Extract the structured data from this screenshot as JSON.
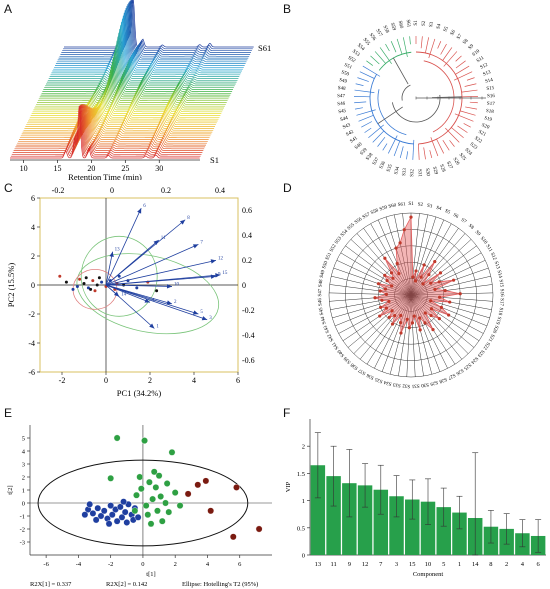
{
  "panel_labels": [
    "A",
    "B",
    "C",
    "D",
    "E",
    "F"
  ],
  "chart_data": [
    {
      "id": "A",
      "type": "line",
      "xlabel": "Retention Time (min)",
      "xticks": [
        10,
        15,
        20,
        25,
        30
      ],
      "xlim": [
        8,
        36
      ],
      "first_label": "S1",
      "last_label": "S61",
      "n_traces": 61,
      "peaks": [
        {
          "rt": 16.2,
          "h": 0.2
        },
        {
          "rt": 17.5,
          "h": 0.35
        },
        {
          "rt": 18.2,
          "h": 0.9
        },
        {
          "rt": 19.6,
          "h": 0.25
        },
        {
          "rt": 22.5,
          "h": 0.15
        },
        {
          "rt": 28.0,
          "h": 0.15
        },
        {
          "rt": 29.5,
          "h": 0.1
        }
      ],
      "colors": [
        "#d62728",
        "#f0a030",
        "#e8e030",
        "#3cb043",
        "#2aa6d8",
        "#1f3f9f"
      ]
    },
    {
      "id": "B",
      "type": "dendrogram",
      "labels": [
        "S1",
        "S2",
        "S3",
        "S4",
        "S5",
        "S6",
        "S7",
        "S8",
        "S9",
        "S10",
        "S11",
        "S12",
        "S13",
        "S14",
        "S15",
        "S16",
        "S17",
        "S18",
        "S19",
        "S20",
        "S21",
        "S22",
        "S23",
        "S24",
        "S25",
        "S26",
        "S27",
        "S28",
        "S29",
        "S30",
        "S31",
        "S32",
        "S33",
        "S34",
        "S35",
        "S36",
        "S37",
        "S38",
        "S39",
        "S40",
        "S41",
        "S42",
        "S43",
        "S44",
        "S45",
        "S46",
        "S47",
        "S48",
        "S49",
        "S50",
        "S51",
        "S52",
        "S53",
        "S54",
        "S55",
        "S56",
        "S57",
        "S58",
        "S59",
        "S60",
        "S61"
      ],
      "cluster_colors": [
        "#d9534f",
        "#3a7bd5",
        "#3cae6b"
      ]
    },
    {
      "id": "C",
      "type": "scatter",
      "xlabel": "PC1 (34.2%)",
      "ylabel": "PC2 (15.5%)",
      "xlim": [
        -3,
        6
      ],
      "ylim": [
        -6,
        6
      ],
      "xticks": [
        -2,
        0,
        2,
        4,
        6
      ],
      "yticks": [
        -6,
        -4,
        -2,
        0,
        2,
        4,
        6
      ],
      "top_ticks": [
        "-0.2",
        "0",
        "0.2",
        "0.4"
      ],
      "right_ticks": [
        "0.6",
        "0.4",
        "0.2",
        "0",
        "-0.2",
        "-0.4",
        "-0.6"
      ],
      "loadings": [
        {
          "name": "6",
          "x": 1.6,
          "y": 5.3
        },
        {
          "name": "8",
          "x": 3.6,
          "y": 4.5
        },
        {
          "name": "7",
          "x": 4.2,
          "y": 2.8
        },
        {
          "name": "11",
          "x": 2.4,
          "y": 3.1
        },
        {
          "name": "13",
          "x": 0.3,
          "y": 2.3
        },
        {
          "name": "12",
          "x": 5.0,
          "y": 1.7
        },
        {
          "name": "9",
          "x": 5.0,
          "y": 0.6
        },
        {
          "name": "15",
          "x": 5.2,
          "y": 0.7
        },
        {
          "name": "10",
          "x": 3.0,
          "y": -0.1
        },
        {
          "name": "3",
          "x": 4.6,
          "y": -2.4
        },
        {
          "name": "5",
          "x": 4.2,
          "y": -2.0
        },
        {
          "name": "2",
          "x": 3.0,
          "y": -1.3
        },
        {
          "name": "1",
          "x": 2.2,
          "y": -3.0
        },
        {
          "name": "4",
          "x": 2.0,
          "y": -1.2
        },
        {
          "name": "14",
          "x": 0.6,
          "y": -0.8
        }
      ],
      "scores": [
        [
          -2.1,
          0.6
        ],
        [
          -1.8,
          0.2
        ],
        [
          -1.5,
          -0.3
        ],
        [
          -1.2,
          0.4
        ],
        [
          -1.0,
          0.1
        ],
        [
          -0.8,
          -0.2
        ],
        [
          -0.6,
          0.3
        ],
        [
          -0.4,
          0.0
        ],
        [
          -0.2,
          0.2
        ],
        [
          0.0,
          -0.1
        ],
        [
          -0.9,
          0.5
        ],
        [
          -1.3,
          -0.1
        ],
        [
          -0.5,
          -0.4
        ],
        [
          -0.3,
          0.5
        ],
        [
          0.2,
          0.3
        ],
        [
          0.5,
          0.1
        ],
        [
          0.8,
          0.0
        ],
        [
          1.0,
          0.3
        ],
        [
          0.4,
          -0.3
        ],
        [
          -0.7,
          -0.3
        ],
        [
          1.4,
          -0.2
        ],
        [
          1.9,
          0.2
        ],
        [
          2.3,
          -0.4
        ],
        [
          0.6,
          0.6
        ]
      ],
      "colors": {
        "scores_red": "#c0392b",
        "scores_black": "#111111",
        "scores_blue": "#1f3f9f",
        "ellipse_green": "#7ac47a",
        "ellipse_red": "#e08080",
        "box": "#d8c060"
      }
    },
    {
      "id": "D",
      "type": "radar",
      "labels": [
        "S1",
        "S2",
        "S3",
        "S4",
        "S5",
        "S6",
        "S7",
        "S8",
        "S9",
        "S10",
        "S11",
        "S12",
        "S13",
        "S14",
        "S15",
        "S16",
        "S17",
        "S18",
        "S19",
        "S20",
        "S21",
        "S22",
        "S23",
        "S24",
        "S25",
        "S26",
        "S27",
        "S28",
        "S29",
        "S30",
        "S31",
        "S32",
        "S33",
        "S34",
        "S35",
        "S36",
        "S37",
        "S38",
        "S39",
        "S40",
        "S41",
        "S42",
        "S43",
        "S44",
        "S45",
        "S46",
        "S47",
        "S48",
        "S49",
        "S50",
        "S51",
        "S52",
        "S53",
        "S54",
        "S55",
        "S56",
        "S57",
        "S58",
        "S59",
        "S60",
        "S61"
      ],
      "values": [
        0.95,
        0.22,
        0.3,
        0.18,
        0.4,
        0.25,
        0.5,
        0.33,
        0.2,
        0.45,
        0.28,
        0.38,
        0.55,
        0.3,
        0.42,
        0.6,
        0.35,
        0.48,
        0.25,
        0.4,
        0.52,
        0.3,
        0.45,
        0.35,
        0.28,
        0.5,
        0.38,
        0.3,
        0.44,
        0.26,
        0.34,
        0.4,
        0.3,
        0.48,
        0.36,
        0.28,
        0.42,
        0.32,
        0.38,
        0.3,
        0.46,
        0.34,
        0.4,
        0.28,
        0.36,
        0.44,
        0.3,
        0.38,
        0.32,
        0.42,
        0.26,
        0.34,
        0.4,
        0.3,
        0.36,
        0.55,
        0.3,
        0.42,
        0.6,
        0.65,
        0.8
      ],
      "color": "#e55b5b"
    },
    {
      "id": "E",
      "type": "scatter",
      "xlabel": "t[1]",
      "ylabel": "t[2]",
      "xlim": [
        -7,
        8
      ],
      "ylim": [
        -4,
        6
      ],
      "xticks": [
        -6,
        -4,
        -2,
        0,
        2,
        4,
        6
      ],
      "yticks": [
        -3,
        -2,
        -1,
        0,
        1,
        2,
        3,
        4,
        5
      ],
      "footer": [
        "R2X[1] = 0.337",
        "R2X[2] = 0.142",
        "Ellipse: Hotelling's T2 (95%)"
      ],
      "groups": [
        {
          "name": "blue",
          "color": "#1f3fa0",
          "points": [
            [
              -3.4,
              -0.5
            ],
            [
              -3.1,
              -0.8
            ],
            [
              -2.8,
              -0.4
            ],
            [
              -2.6,
              -1.0
            ],
            [
              -2.4,
              -0.6
            ],
            [
              -2.2,
              -1.2
            ],
            [
              -2.0,
              -0.2
            ],
            [
              -1.9,
              -0.9
            ],
            [
              -1.7,
              -0.5
            ],
            [
              -1.6,
              -1.4
            ],
            [
              -1.4,
              -0.3
            ],
            [
              -1.3,
              -1.1
            ],
            [
              -1.1,
              -0.7
            ],
            [
              -1.0,
              -1.5
            ],
            [
              -0.9,
              -0.1
            ],
            [
              -0.7,
              -0.9
            ],
            [
              -0.6,
              -1.3
            ],
            [
              -0.5,
              -0.4
            ],
            [
              -2.9,
              -1.3
            ],
            [
              -3.3,
              -0.1
            ],
            [
              -2.1,
              -1.6
            ],
            [
              -1.2,
              0.1
            ],
            [
              -0.3,
              -1.1
            ],
            [
              -3.6,
              -0.9
            ]
          ]
        },
        {
          "name": "green",
          "color": "#2ea043",
          "points": [
            [
              -2.0,
              1.9
            ],
            [
              -1.6,
              5.0
            ],
            [
              0.1,
              4.8
            ],
            [
              1.8,
              3.9
            ],
            [
              -0.2,
              2.0
            ],
            [
              0.4,
              1.6
            ],
            [
              0.8,
              1.2
            ],
            [
              1.1,
              0.5
            ],
            [
              0.6,
              0.3
            ],
            [
              0.2,
              -0.2
            ],
            [
              -0.4,
              0.6
            ],
            [
              1.4,
              0.0
            ],
            [
              0.9,
              -0.6
            ],
            [
              0.3,
              -0.9
            ],
            [
              1.6,
              -0.7
            ],
            [
              1.2,
              -1.4
            ],
            [
              0.5,
              -1.6
            ],
            [
              2.0,
              0.8
            ],
            [
              -0.1,
              1.1
            ],
            [
              0.7,
              2.4
            ],
            [
              1.0,
              2.1
            ],
            [
              -0.5,
              -0.6
            ],
            [
              2.3,
              -0.2
            ],
            [
              1.5,
              1.5
            ]
          ]
        },
        {
          "name": "darkred",
          "color": "#7a1a10",
          "points": [
            [
              3.9,
              1.7
            ],
            [
              3.4,
              1.4
            ],
            [
              5.8,
              1.2
            ],
            [
              4.2,
              -0.6
            ],
            [
              5.6,
              -2.6
            ],
            [
              7.2,
              -2.0
            ],
            [
              2.8,
              0.7
            ]
          ]
        }
      ]
    },
    {
      "id": "F",
      "type": "bar",
      "xlabel": "Component",
      "ylabel": "VIP",
      "ylim": [
        0,
        2.5
      ],
      "yticks": [
        0,
        0.5,
        1,
        1.5,
        2
      ],
      "categories": [
        "13",
        "11",
        "9",
        "12",
        "7",
        "3",
        "15",
        "10",
        "5",
        "1",
        "14",
        "8",
        "2",
        "4",
        "6"
      ],
      "values": [
        1.65,
        1.45,
        1.32,
        1.28,
        1.2,
        1.08,
        1.02,
        0.98,
        0.88,
        0.78,
        0.68,
        0.52,
        0.48,
        0.4,
        0.35
      ],
      "errors": [
        0.6,
        0.55,
        0.62,
        0.4,
        0.45,
        0.38,
        0.36,
        0.42,
        0.35,
        0.3,
        1.2,
        0.3,
        0.28,
        0.25,
        0.3
      ],
      "color": "#27a04b"
    }
  ]
}
